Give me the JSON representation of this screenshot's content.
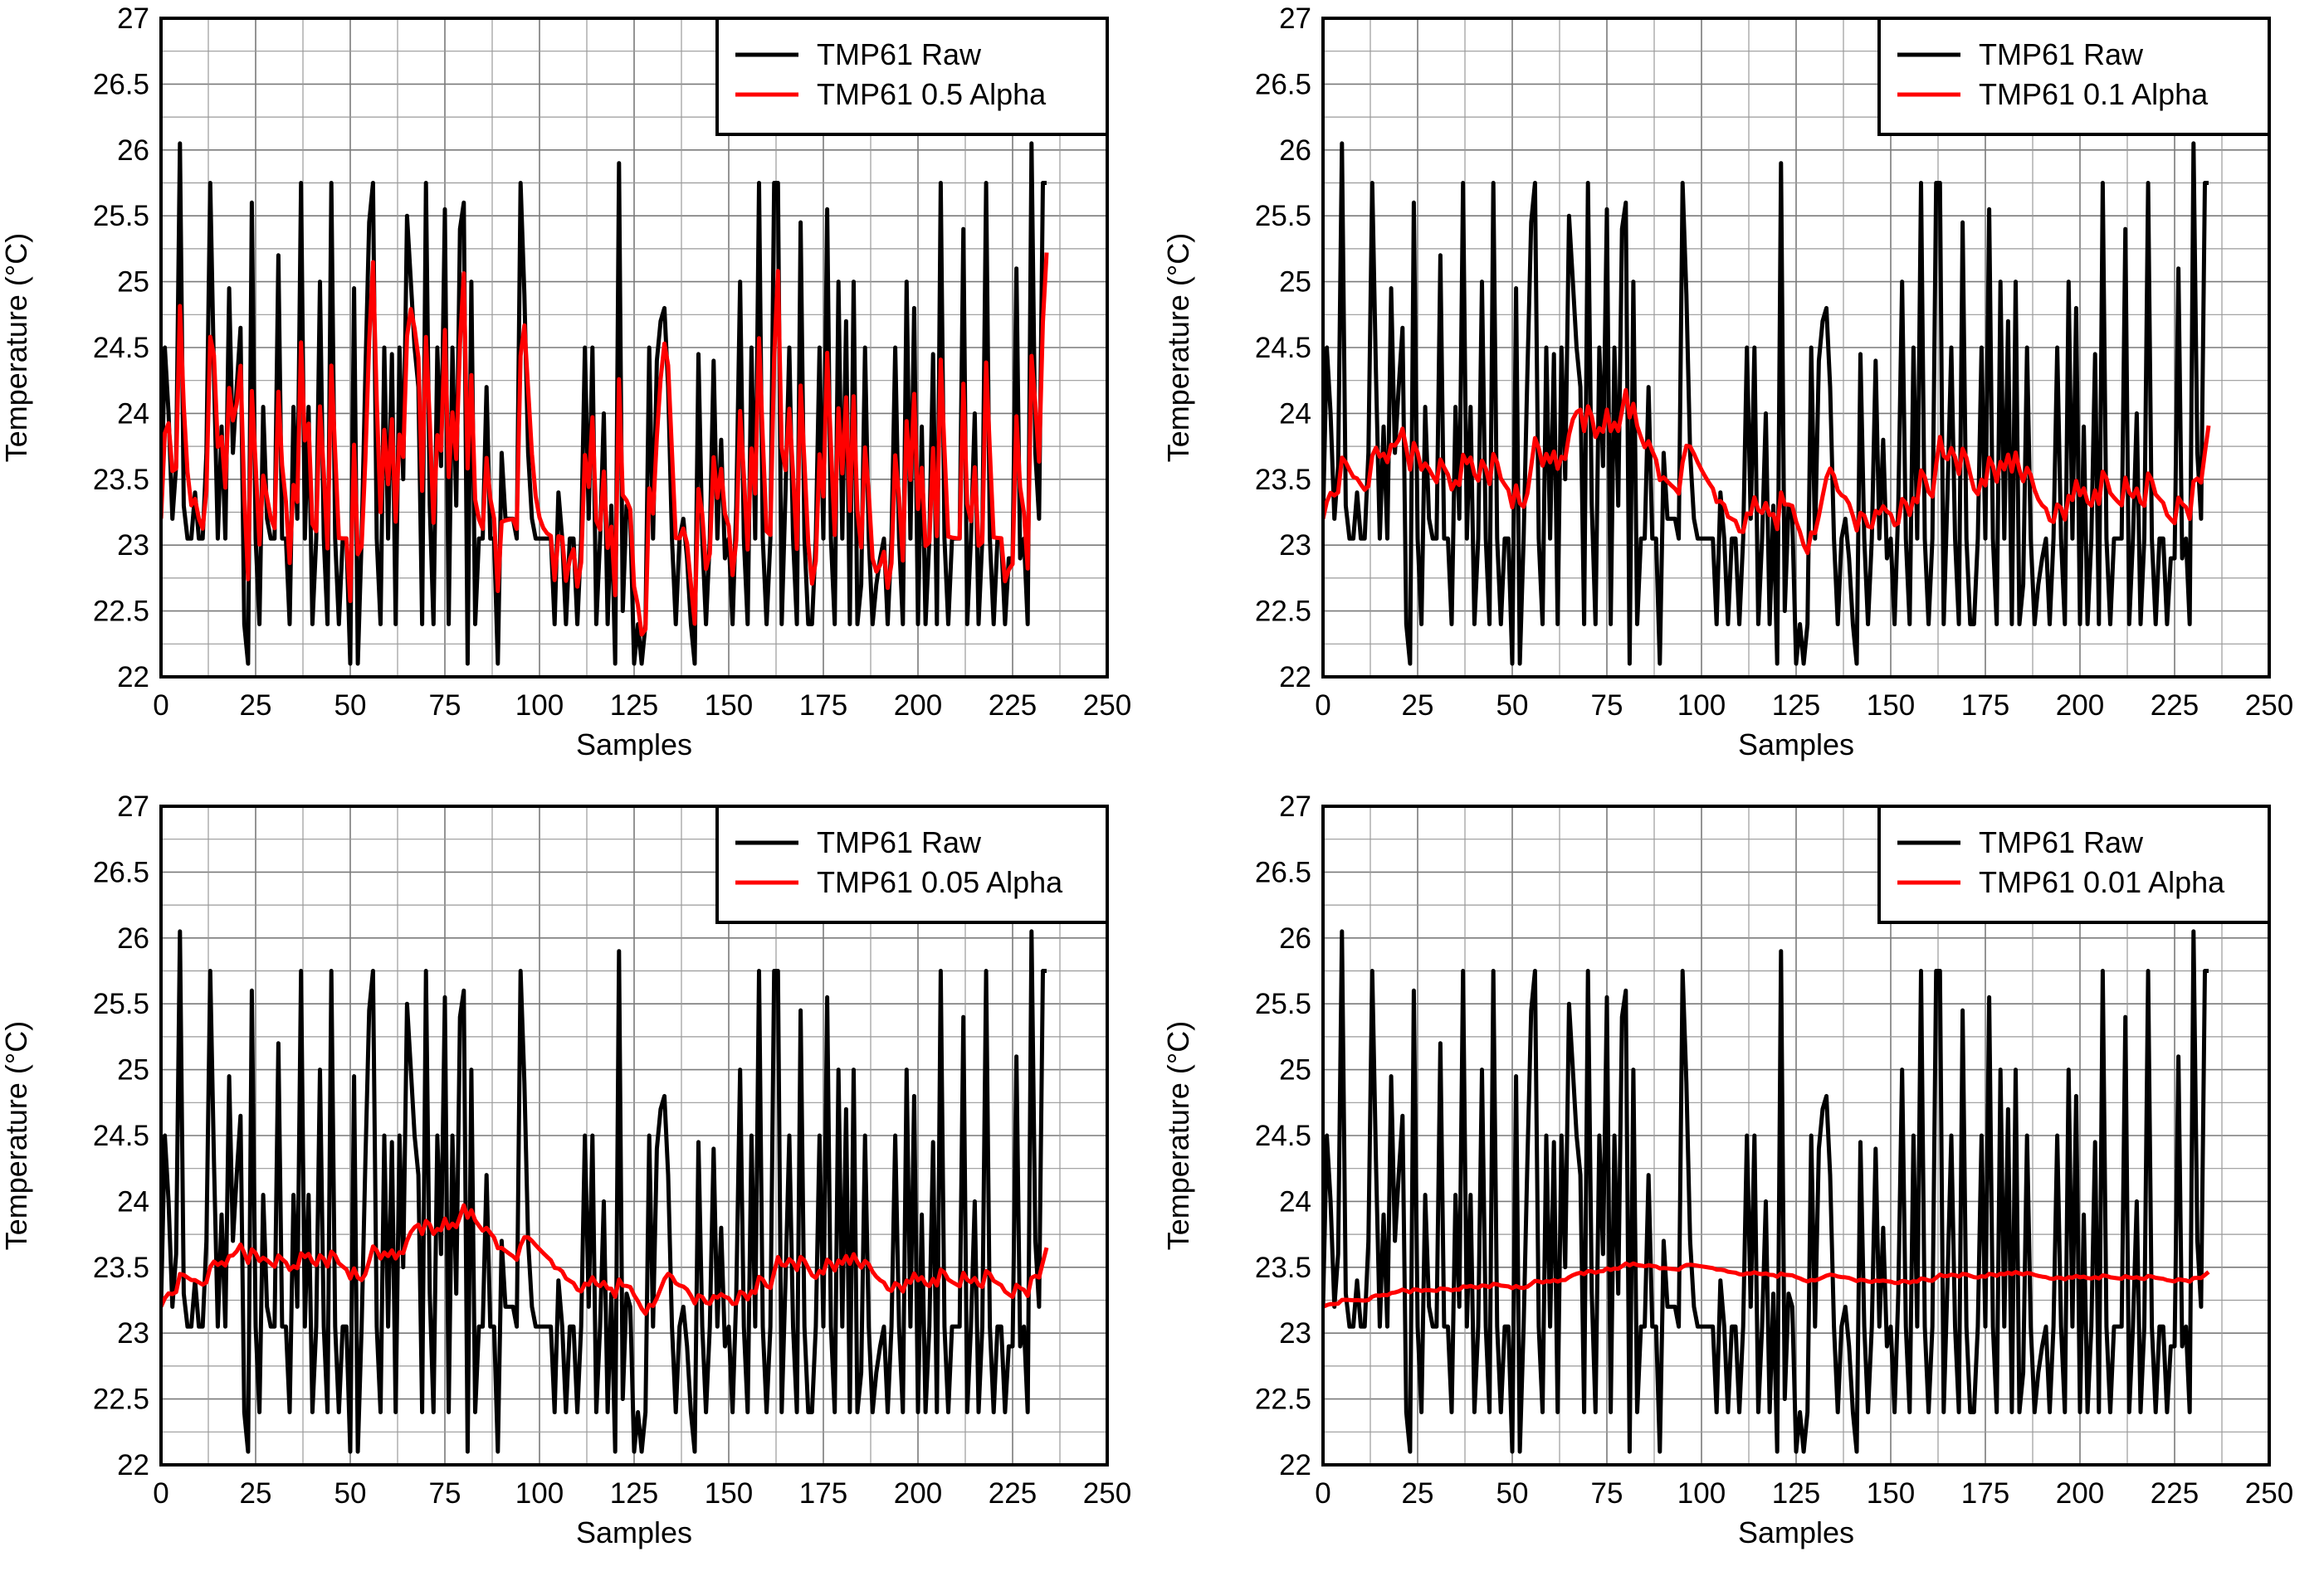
{
  "chart_data": [
    {
      "type": "line",
      "title": "",
      "xlabel": "Samples",
      "ylabel": "Temperature (°C)",
      "xlim": [
        0,
        250
      ],
      "ylim": [
        22,
        27
      ],
      "xticks": [
        "0",
        "25",
        "50",
        "75",
        "100",
        "125",
        "150",
        "175",
        "200",
        "225",
        "250"
      ],
      "yticks": [
        "22",
        "22.5",
        "23",
        "23.5",
        "24",
        "24.5",
        "25",
        "25.5",
        "26",
        "26.5",
        "27"
      ],
      "grid": true,
      "legend_position": "top-right",
      "series": [
        {
          "name": "TMP61 Raw",
          "color": "#000000",
          "values": "shared:raw"
        },
        {
          "name": "TMP61 0.5 Alpha",
          "color": "#ff0000",
          "alpha": 0.5
        }
      ]
    },
    {
      "type": "line",
      "title": "",
      "xlabel": "Samples",
      "ylabel": "Temperature (°C)",
      "xlim": [
        0,
        250
      ],
      "ylim": [
        22,
        27
      ],
      "xticks": [
        "0",
        "25",
        "50",
        "75",
        "100",
        "125",
        "150",
        "175",
        "200",
        "225",
        "250"
      ],
      "yticks": [
        "22",
        "22.5",
        "23",
        "23.5",
        "24",
        "24.5",
        "25",
        "25.5",
        "26",
        "26.5",
        "27"
      ],
      "grid": true,
      "legend_position": "top-right",
      "series": [
        {
          "name": "TMP61 Raw",
          "color": "#000000",
          "values": "shared:raw"
        },
        {
          "name": "TMP61 0.1 Alpha",
          "color": "#ff0000",
          "alpha": 0.1
        }
      ]
    },
    {
      "type": "line",
      "title": "",
      "xlabel": "Samples",
      "ylabel": "Temperature (°C)",
      "xlim": [
        0,
        250
      ],
      "ylim": [
        22,
        27
      ],
      "xticks": [
        "0",
        "25",
        "50",
        "75",
        "100",
        "125",
        "150",
        "175",
        "200",
        "225",
        "250"
      ],
      "yticks": [
        "22",
        "22.5",
        "23",
        "23.5",
        "24",
        "24.5",
        "25",
        "25.5",
        "26",
        "26.5",
        "27"
      ],
      "grid": true,
      "legend_position": "top-right",
      "series": [
        {
          "name": "TMP61 Raw",
          "color": "#000000",
          "values": "shared:raw"
        },
        {
          "name": "TMP61 0.05 Alpha",
          "color": "#ff0000",
          "alpha": 0.05
        }
      ]
    },
    {
      "type": "line",
      "title": "",
      "xlabel": "Samples",
      "ylabel": "Temperature (°C)",
      "xlim": [
        0,
        250
      ],
      "ylim": [
        22,
        27
      ],
      "xticks": [
        "0",
        "25",
        "50",
        "75",
        "100",
        "125",
        "150",
        "175",
        "200",
        "225",
        "250"
      ],
      "yticks": [
        "22",
        "22.5",
        "23",
        "23.5",
        "24",
        "24.5",
        "25",
        "25.5",
        "26",
        "26.5",
        "27"
      ],
      "grid": true,
      "legend_position": "top-right",
      "series": [
        {
          "name": "TMP61 Raw",
          "color": "#000000",
          "values": "shared:raw"
        },
        {
          "name": "TMP61 0.01 Alpha",
          "color": "#ff0000",
          "alpha": 0.01
        }
      ]
    }
  ],
  "raw_series": {
    "name": "TMP61 Raw",
    "x_start": 0,
    "x_step": 1,
    "values": [
      23.2,
      24.5,
      24.0,
      23.2,
      23.6,
      26.05,
      23.3,
      23.05,
      23.05,
      23.4,
      23.05,
      23.05,
      23.7,
      25.75,
      24.3,
      23.05,
      23.9,
      23.05,
      24.95,
      23.7,
      24.2,
      24.65,
      22.4,
      22.1,
      25.6,
      23.05,
      22.4,
      24.05,
      23.2,
      23.05,
      23.05,
      25.2,
      23.05,
      23.05,
      22.4,
      24.05,
      23.2,
      25.75,
      23.05,
      24.05,
      22.4,
      23.05,
      25.0,
      23.05,
      22.4,
      25.75,
      23.05,
      22.4,
      23.05,
      23.05,
      22.1,
      24.95,
      22.1,
      23.05,
      24.3,
      25.45,
      25.75,
      23.05,
      22.4,
      24.5,
      23.05,
      24.45,
      22.4,
      24.5,
      23.5,
      25.5,
      25.0,
      24.5,
      24.2,
      22.4,
      25.75,
      23.3,
      22.4,
      24.5,
      23.6,
      25.55,
      22.4,
      24.5,
      23.3,
      25.4,
      25.6,
      22.1,
      25.0,
      22.4,
      23.05,
      23.05,
      24.2,
      23.05,
      23.05,
      22.1,
      23.7,
      23.2,
      23.2,
      23.2,
      23.05,
      25.75,
      24.9,
      23.7,
      23.2,
      23.05,
      23.05,
      23.05,
      23.05,
      23.05,
      22.4,
      23.4,
      23.05,
      22.4,
      23.05,
      23.05,
      22.4,
      23.05,
      24.5,
      23.2,
      24.5,
      22.4,
      23.05,
      24.0,
      22.4,
      23.3,
      22.1,
      25.9,
      22.5,
      23.3,
      23.2,
      22.1,
      22.4,
      22.1,
      22.4,
      24.5,
      23.05,
      24.4,
      24.7,
      24.8,
      24.2,
      23.05,
      22.4,
      23.05,
      23.2,
      22.9,
      22.4,
      22.1,
      24.45,
      23.05,
      22.4,
      23.05,
      24.4,
      23.05,
      23.8,
      22.9,
      23.05,
      22.4,
      23.3,
      25.0,
      23.05,
      22.4,
      24.5,
      23.05,
      25.75,
      23.05,
      22.4,
      23.05,
      25.75,
      25.75,
      22.4,
      23.4,
      24.5,
      23.05,
      22.4,
      25.45,
      23.05,
      22.4,
      22.4,
      23.05,
      24.5,
      23.05,
      25.55,
      23.05,
      22.4,
      25.0,
      23.05,
      24.7,
      22.4,
      25.0,
      22.4,
      22.7,
      24.5,
      23.05,
      22.4,
      22.7,
      22.9,
      23.05,
      22.4,
      23.05,
      24.5,
      23.05,
      22.4,
      25.0,
      23.05,
      24.8,
      22.4,
      23.9,
      22.4,
      23.05,
      24.45,
      22.4,
      25.75,
      23.05,
      22.4,
      23.05,
      23.05,
      23.05,
      25.4,
      22.4,
      23.05,
      24.0,
      22.4,
      23.05,
      25.75,
      23.05,
      22.4,
      23.05,
      23.05,
      22.4,
      22.9,
      22.9,
      25.1,
      22.9,
      23.05,
      22.4,
      26.05,
      23.7,
      23.2,
      25.75,
      25.75
    ]
  }
}
